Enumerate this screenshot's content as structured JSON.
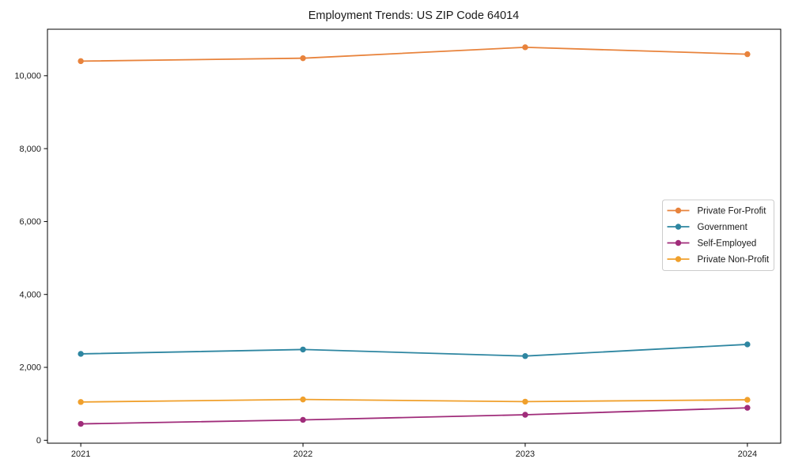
{
  "chart_data": {
    "type": "line",
    "title": "Employment Trends: US ZIP Code 64014",
    "x": [
      2021,
      2022,
      2023,
      2024
    ],
    "categories": [
      "2021",
      "2022",
      "2023",
      "2024"
    ],
    "series": [
      {
        "name": "Private For-Profit",
        "color": "#e8833c",
        "values": [
          10400,
          10480,
          10780,
          10590
        ]
      },
      {
        "name": "Government",
        "color": "#2e86a1",
        "values": [
          2370,
          2490,
          2310,
          2630
        ]
      },
      {
        "name": "Self-Employed",
        "color": "#a02c7a",
        "values": [
          450,
          560,
          700,
          890
        ]
      },
      {
        "name": "Private Non-Profit",
        "color": "#f0a02c",
        "values": [
          1050,
          1120,
          1060,
          1110
        ]
      }
    ],
    "yticks": [
      0,
      2000,
      4000,
      6000,
      8000,
      10000
    ],
    "ytick_labels": [
      "0",
      "2,000",
      "4,000",
      "6,000",
      "8,000",
      "10,000"
    ],
    "ylim": [
      -80,
      11275
    ],
    "xlim": [
      2020.85,
      2024.15
    ],
    "grid": false,
    "legend_position": "center right",
    "marker": "circle",
    "axis_color": "#000000",
    "legend_border_color": "#cccccc"
  }
}
